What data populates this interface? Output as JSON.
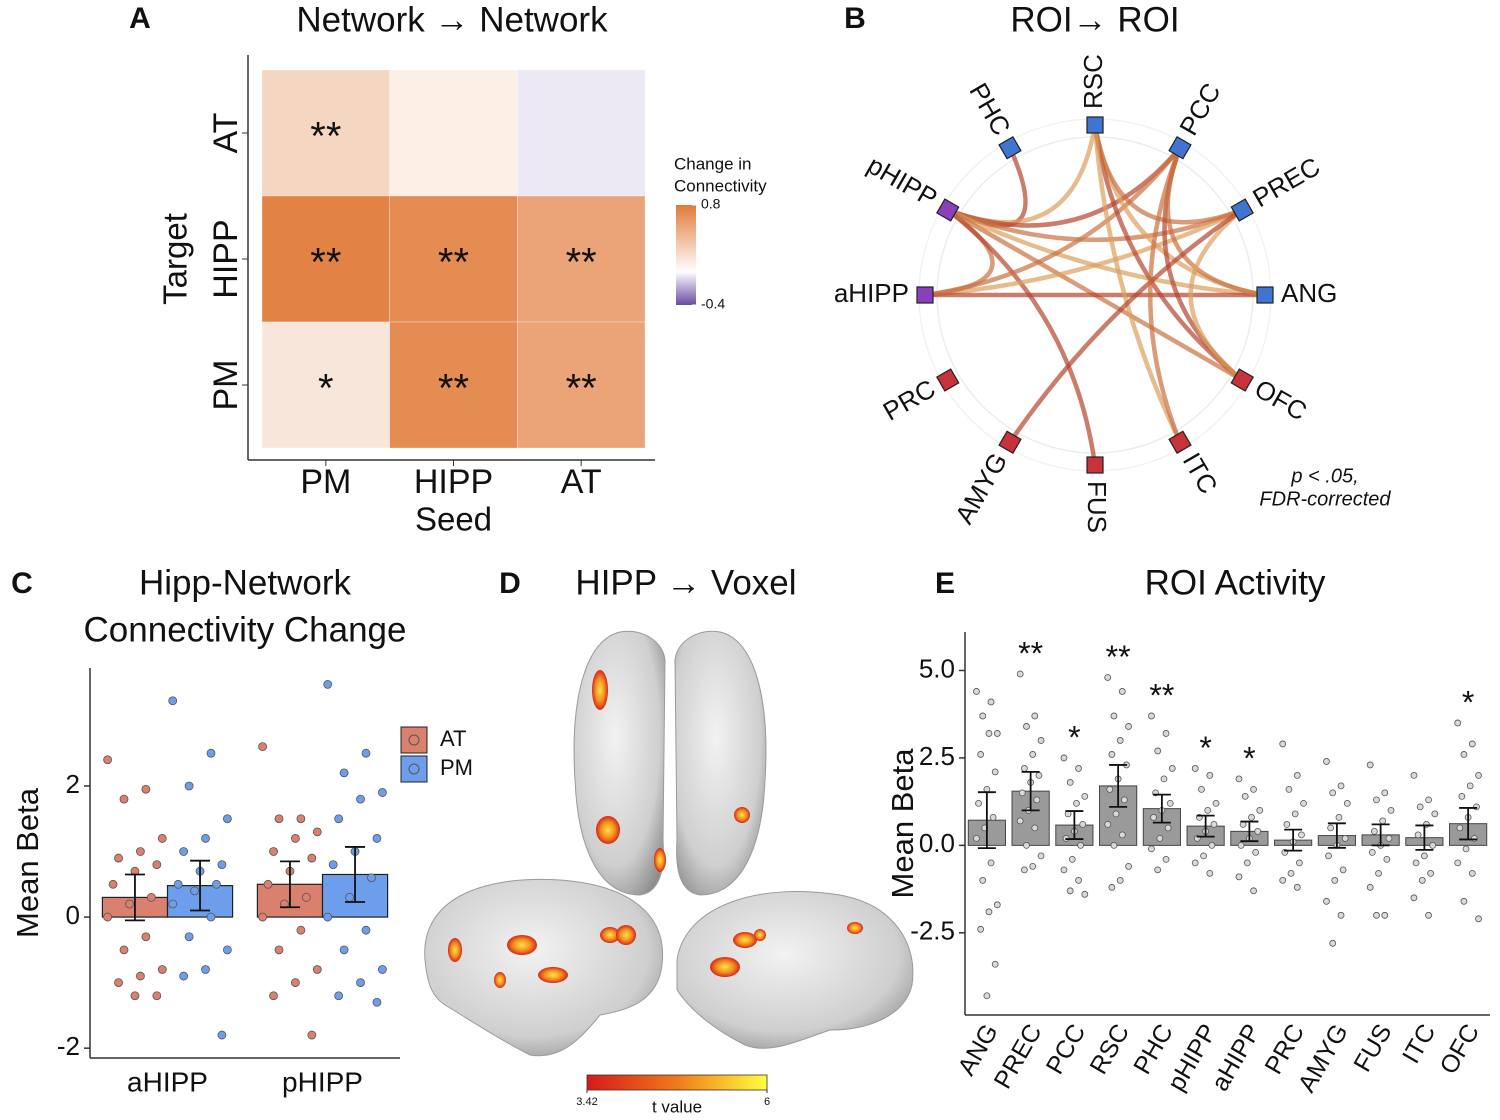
{
  "chart_data": [
    {
      "panel": "A",
      "type": "heatmap",
      "title": "Network → Network",
      "x_categories": [
        "PM",
        "HIPP",
        "AT"
      ],
      "y_categories": [
        "AT",
        "HIPP",
        "PM"
      ],
      "category_colors": {
        "PM": "#5b8ee0",
        "HIPP": "#a24fcf",
        "AT": "#c8323a"
      },
      "x_label": "Seed",
      "y_label": "Target",
      "values": [
        [
          0.25,
          0.1,
          -0.05
        ],
        [
          0.75,
          0.7,
          0.55
        ],
        [
          0.15,
          0.7,
          0.55
        ]
      ],
      "annotations": [
        [
          "**",
          null,
          null
        ],
        [
          "**",
          "**",
          "**"
        ],
        [
          "*",
          "**",
          "**"
        ]
      ],
      "colorbar": {
        "title": [
          "Change in",
          "Connectivity"
        ],
        "lim": [
          -0.4,
          0.8
        ],
        "ticks": [
          0.8,
          -0.4
        ],
        "colors": {
          "low": "#6a4ba3",
          "mid": "#ffffff",
          "high": "#e07b39"
        }
      }
    },
    {
      "panel": "B",
      "type": "chord",
      "title": "ROI→ ROI",
      "nodes": [
        {
          "name": "RSC",
          "color": "#3f74d0"
        },
        {
          "name": "PCC",
          "color": "#3f74d0"
        },
        {
          "name": "PREC",
          "color": "#3f74d0"
        },
        {
          "name": "ANG",
          "color": "#3f74d0"
        },
        {
          "name": "OFC",
          "color": "#c8323a"
        },
        {
          "name": "ITC",
          "color": "#c8323a"
        },
        {
          "name": "FUS",
          "color": "#c8323a"
        },
        {
          "name": "AMYG",
          "color": "#c8323a"
        },
        {
          "name": "PRC",
          "color": "#c8323a"
        },
        {
          "name": "aHIPP",
          "color": "#8a3fbf"
        },
        {
          "name": "pHIPP",
          "color": "#8a3fbf"
        },
        {
          "name": "PHC",
          "color": "#3f74d0"
        }
      ],
      "edges": [
        [
          "PHC",
          "pHIPP"
        ],
        [
          "pHIPP",
          "aHIPP"
        ],
        [
          "pHIPP",
          "RSC"
        ],
        [
          "pHIPP",
          "PCC"
        ],
        [
          "pHIPP",
          "PREC"
        ],
        [
          "pHIPP",
          "ANG"
        ],
        [
          "pHIPP",
          "FUS"
        ],
        [
          "pHIPP",
          "OFC"
        ],
        [
          "aHIPP",
          "PREC"
        ],
        [
          "aHIPP",
          "ANG"
        ],
        [
          "aHIPP",
          "PCC"
        ],
        [
          "RSC",
          "ANG"
        ],
        [
          "RSC",
          "OFC"
        ],
        [
          "RSC",
          "PREC"
        ],
        [
          "RSC",
          "ITC"
        ],
        [
          "PCC",
          "OFC"
        ],
        [
          "PCC",
          "ANG"
        ],
        [
          "PREC",
          "OFC"
        ],
        [
          "PREC",
          "AMYG"
        ],
        [
          "PCC",
          "ITC"
        ]
      ],
      "edge_colors": [
        "#b5452c",
        "#c9703f",
        "#dca05c"
      ],
      "annotation": [
        "p < .05,",
        "FDR-corrected"
      ]
    },
    {
      "panel": "C",
      "type": "bar",
      "title": [
        "Hipp-Network",
        "Connectivity Change"
      ],
      "y_label": "Mean Beta",
      "categories": [
        "aHIPP",
        "pHIPP"
      ],
      "series": [
        {
          "name": "AT",
          "color": "#d9806f",
          "values": [
            0.3,
            0.5
          ],
          "errors": [
            0.35,
            0.35
          ],
          "points": [
            [
              2.4,
              1.95,
              1.8,
              1.2,
              1.0,
              0.9,
              0.8,
              0.7,
              0.5,
              0.3,
              0.2,
              0.0,
              -0.3,
              -0.5,
              -0.8,
              -0.9,
              -1.0,
              -1.2,
              -1.2
            ],
            [
              2.6,
              1.5,
              1.5,
              1.3,
              1.2,
              1.0,
              0.9,
              0.7,
              0.5,
              0.3,
              0.2,
              0.0,
              -0.2,
              -0.5,
              -0.8,
              -1.0,
              -1.2,
              -1.8
            ]
          ]
        },
        {
          "name": "PM",
          "color": "#6d9eeb",
          "values": [
            0.48,
            0.65
          ],
          "errors": [
            0.38,
            0.42
          ],
          "points": [
            [
              3.3,
              2.5,
              2.0,
              1.5,
              1.2,
              1.0,
              0.8,
              0.7,
              0.5,
              0.5,
              0.4,
              0.2,
              0.0,
              -0.3,
              -0.5,
              -0.8,
              -0.9,
              -1.8
            ],
            [
              3.55,
              2.5,
              2.2,
              1.9,
              1.8,
              1.5,
              1.2,
              1.0,
              0.8,
              0.6,
              0.3,
              0.0,
              -0.2,
              -0.5,
              -0.8,
              -1.0,
              -1.2,
              -1.3
            ]
          ]
        }
      ],
      "ylim": [
        -2.15,
        3.8
      ],
      "yticks": [
        -2,
        0,
        2
      ]
    },
    {
      "panel": "D",
      "type": "brain-map",
      "title": "HIPP → Voxel",
      "colorbar": {
        "title": "t value",
        "lim": [
          3.42,
          6
        ],
        "ticks": [
          3.42,
          6
        ],
        "colors": [
          "#d7191c",
          "#f07a1a",
          "#ffff40"
        ]
      }
    },
    {
      "panel": "E",
      "type": "bar",
      "title": "ROI Activity",
      "y_label": "Mean Beta",
      "categories": [
        "ANG",
        "PREC",
        "PCC",
        "RSC",
        "PHC",
        "pHIPP",
        "aHIPP",
        "PRC",
        "AMYG",
        "FUS",
        "ITC",
        "OFC"
      ],
      "category_colors": [
        "#5b8ee0",
        "#5b8ee0",
        "#5b8ee0",
        "#5b8ee0",
        "#5b8ee0",
        "#a24fcf",
        "#a24fcf",
        "#c8323a",
        "#c8323a",
        "#c8323a",
        "#c8323a",
        "#c8323a"
      ],
      "color": "#9a9a9a",
      "values": [
        0.72,
        1.55,
        0.58,
        1.7,
        1.05,
        0.55,
        0.4,
        0.15,
        0.28,
        0.3,
        0.22,
        0.62
      ],
      "errors": [
        0.8,
        0.55,
        0.4,
        0.6,
        0.4,
        0.3,
        0.28,
        0.3,
        0.35,
        0.3,
        0.35,
        0.45
      ],
      "annotations": [
        null,
        "**",
        "*",
        "**",
        "**",
        "*",
        "*",
        null,
        null,
        null,
        null,
        "*"
      ],
      "points": [
        [
          4.4,
          4.1,
          3.7,
          3.2,
          3.2,
          2.6,
          2.1,
          1.6,
          1.2,
          0.8,
          0.5,
          0.2,
          -0.5,
          -1.0,
          -1.7,
          -1.9,
          -2.4,
          -3.4,
          -4.3
        ],
        [
          4.9,
          3.7,
          3.4,
          3.0,
          2.6,
          2.2,
          2.0,
          1.8,
          1.5,
          1.3,
          1.0,
          0.7,
          0.5,
          0.0,
          -0.3,
          -0.6,
          -0.7
        ],
        [
          2.5,
          2.2,
          1.8,
          1.4,
          1.2,
          0.9,
          0.6,
          0.4,
          0.2,
          0.0,
          -0.4,
          -0.7,
          -1.0,
          -1.3,
          -1.4
        ],
        [
          4.8,
          4.4,
          3.7,
          3.4,
          3.0,
          2.6,
          2.3,
          1.9,
          1.6,
          1.3,
          0.9,
          0.6,
          0.3,
          0.0,
          -0.6,
          -1.0,
          -1.2
        ],
        [
          3.7,
          3.2,
          2.7,
          2.2,
          1.9,
          1.5,
          1.2,
          1.0,
          0.8,
          0.5,
          0.2,
          -0.1,
          -0.4,
          -0.7
        ],
        [
          2.2,
          2.0,
          1.6,
          1.2,
          1.0,
          0.8,
          0.6,
          0.4,
          0.2,
          0.0,
          -0.3,
          -0.5,
          -0.8
        ],
        [
          1.9,
          1.6,
          1.4,
          1.0,
          0.8,
          0.6,
          0.4,
          0.2,
          0.0,
          -0.2,
          -0.5,
          -0.9,
          -1.3
        ],
        [
          2.9,
          2.0,
          1.6,
          1.2,
          0.9,
          0.6,
          0.3,
          0.1,
          -0.2,
          -0.5,
          -0.8,
          -1.0,
          -1.2
        ],
        [
          2.4,
          1.7,
          1.5,
          1.2,
          0.8,
          0.5,
          0.2,
          0.0,
          -0.3,
          -0.7,
          -1.0,
          -1.6,
          -2.0,
          -2.8
        ],
        [
          2.3,
          1.5,
          1.3,
          1.0,
          0.7,
          0.4,
          0.2,
          0.0,
          -0.2,
          -0.4,
          -0.8,
          -1.2,
          -2.0,
          -2.0
        ],
        [
          2.0,
          1.3,
          1.1,
          0.9,
          0.6,
          0.3,
          0.0,
          -0.3,
          -0.5,
          -0.8,
          -1.0,
          -1.5,
          -2.0
        ],
        [
          3.5,
          2.9,
          2.6,
          2.0,
          1.7,
          1.4,
          1.1,
          0.8,
          0.5,
          0.2,
          -0.1,
          -0.5,
          -0.8,
          -1.6,
          -2.1
        ]
      ],
      "ylim": [
        -4.85,
        6.1
      ],
      "yticks": [
        {
          "value": 5,
          "label": "5.0"
        },
        2.5,
        {
          "value": 0,
          "label": "0.0"
        },
        -2.5
      ]
    }
  ]
}
